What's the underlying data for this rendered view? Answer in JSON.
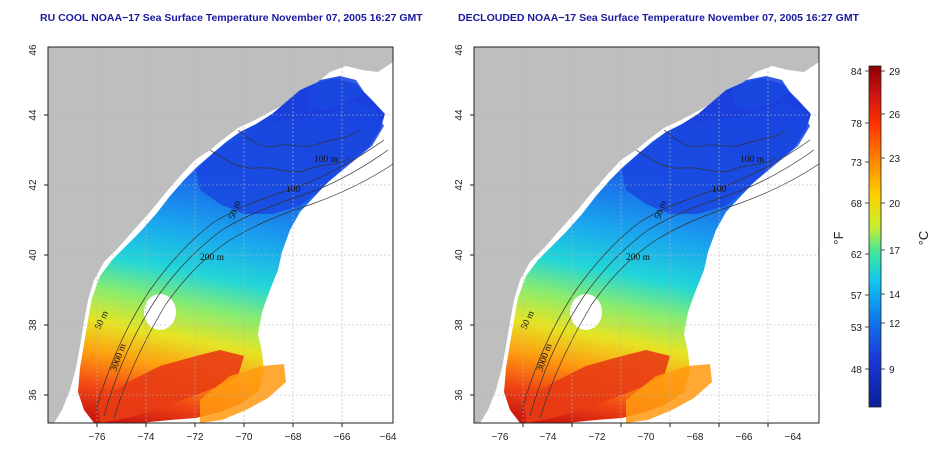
{
  "maps": [
    {
      "id": "left",
      "title": "RU COOL NOAA−17 Sea Surface Temperature November 07, 2005 16:27 GMT",
      "variant": "cool"
    },
    {
      "id": "right",
      "title": "DECLOUDED NOAA−17 Sea Surface Temperature November 07, 2005 16:27 GMT",
      "variant": "declouded"
    }
  ],
  "axes": {
    "x_ticks": [
      "−76",
      "−74",
      "−72",
      "−70",
      "−68",
      "−66",
      "−64"
    ],
    "y_ticks": [
      "36",
      "38",
      "40",
      "42",
      "44",
      "46"
    ]
  },
  "contour_labels": [
    "100 m",
    "100",
    "50 m",
    "200 m",
    "50 m",
    "3000 m"
  ],
  "colorbar": {
    "fahrenheit_labels": [
      "84",
      "78",
      "73",
      "68",
      "62",
      "57",
      "53",
      "48"
    ],
    "celsius_labels": [
      "29",
      "26",
      "23",
      "20",
      "17",
      "14",
      "12",
      "9"
    ],
    "fahrenheit_unit": "°F",
    "celsius_unit": "°C",
    "colors": [
      "#8b0000",
      "#cc1111",
      "#ff3300",
      "#ff8800",
      "#ffd000",
      "#c8ee30",
      "#3ee6a0",
      "#10c8ee",
      "#1080ee",
      "#1838d8",
      "#0c1e9a"
    ]
  },
  "colors": {
    "land": "#bebebe",
    "no_data": "#ffffff",
    "title": "#1a1aa0",
    "grid": "#b5b5b5"
  }
}
